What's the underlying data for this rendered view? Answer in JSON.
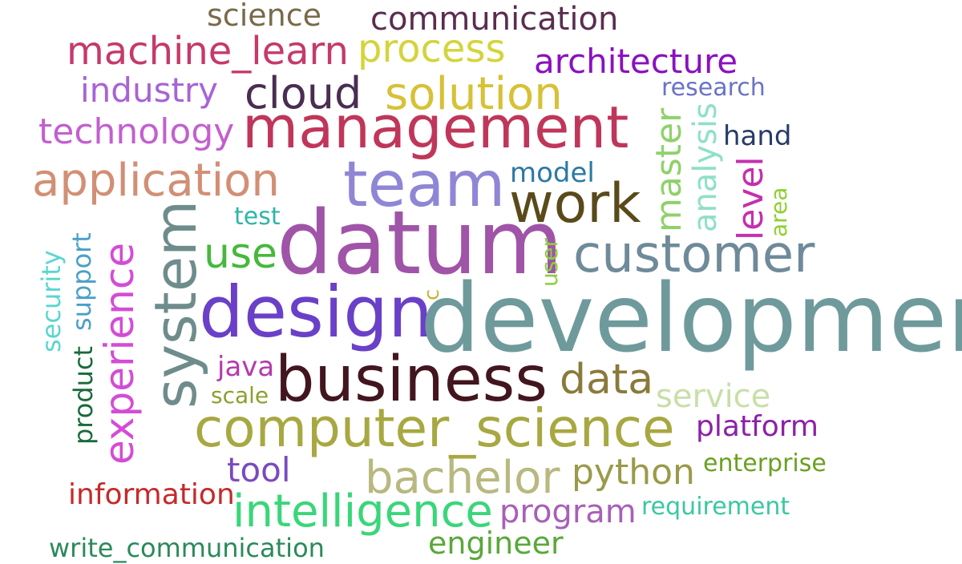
{
  "words": [
    {
      "key": "science",
      "text": "science",
      "color": "#7a6a4a"
    },
    {
      "key": "communication",
      "text": "communication",
      "color": "#5a2d4f"
    },
    {
      "key": "machine-learn",
      "text": "machine_learn",
      "color": "#c43a6b"
    },
    {
      "key": "process",
      "text": "process",
      "color": "#d4d43a"
    },
    {
      "key": "architecture",
      "text": "architecture",
      "color": "#8b10c0"
    },
    {
      "key": "industry",
      "text": "industry",
      "color": "#a863d6"
    },
    {
      "key": "cloud",
      "text": "cloud",
      "color": "#4a2d52"
    },
    {
      "key": "solution",
      "text": "solution",
      "color": "#d7c136"
    },
    {
      "key": "research",
      "text": "research",
      "color": "#6a72c8"
    },
    {
      "key": "technology",
      "text": "technology",
      "color": "#c35fd0"
    },
    {
      "key": "management",
      "text": "management",
      "color": "#c0365a"
    },
    {
      "key": "hand",
      "text": "hand",
      "color": "#283c68"
    },
    {
      "key": "master",
      "text": "master",
      "color": "#8fd16a"
    },
    {
      "key": "analysis",
      "text": "analysis",
      "color": "#8fe0c8"
    },
    {
      "key": "application",
      "text": "application",
      "color": "#d28f75"
    },
    {
      "key": "team",
      "text": "team",
      "color": "#8f86d6"
    },
    {
      "key": "model",
      "text": "model",
      "color": "#2a7aa3"
    },
    {
      "key": "work",
      "text": "work",
      "color": "#5a4a1a"
    },
    {
      "key": "level",
      "text": "level",
      "color": "#c52fae"
    },
    {
      "key": "area",
      "text": "area",
      "color": "#8ed02f"
    },
    {
      "key": "test",
      "text": "test",
      "color": "#2fb5a8"
    },
    {
      "key": "datum",
      "text": "datum",
      "color": "#a054a8"
    },
    {
      "key": "system",
      "text": "system",
      "color": "#6f8c8c"
    },
    {
      "key": "support",
      "text": "support",
      "color": "#4aa0c8"
    },
    {
      "key": "security",
      "text": "security",
      "color": "#5ad6d0"
    },
    {
      "key": "experience",
      "text": "experience",
      "color": "#d44cd6"
    },
    {
      "key": "use",
      "text": "use",
      "color": "#46b83c"
    },
    {
      "key": "user",
      "text": "user",
      "color": "#8ccf3c"
    },
    {
      "key": "customer",
      "text": "customer",
      "color": "#6f8a99"
    },
    {
      "key": "design",
      "text": "design",
      "color": "#6a40c8"
    },
    {
      "key": "c",
      "text": "c",
      "color": "#c6b43a"
    },
    {
      "key": "development",
      "text": "development",
      "color": "#6f9a9c"
    },
    {
      "key": "product",
      "text": "product",
      "color": "#1a6a3a"
    },
    {
      "key": "java",
      "text": "java",
      "color": "#b43aae"
    },
    {
      "key": "business",
      "text": "business",
      "color": "#43161f"
    },
    {
      "key": "data",
      "text": "data",
      "color": "#8a7a3a"
    },
    {
      "key": "scale",
      "text": "scale",
      "color": "#8aa02f"
    },
    {
      "key": "service",
      "text": "service",
      "color": "#c8dfa8"
    },
    {
      "key": "computer-science",
      "text": "computer_science",
      "color": "#a8a842"
    },
    {
      "key": "platform",
      "text": "platform",
      "color": "#8c20a8"
    },
    {
      "key": "tool",
      "text": "tool",
      "color": "#7a4ac0"
    },
    {
      "key": "enterprise",
      "text": "enterprise",
      "color": "#6aa020"
    },
    {
      "key": "python",
      "text": "python",
      "color": "#9a9a4a"
    },
    {
      "key": "bachelor",
      "text": "bachelor",
      "color": "#b8b880"
    },
    {
      "key": "information",
      "text": "information",
      "color": "#c42a2a"
    },
    {
      "key": "intelligence",
      "text": "intelligence",
      "color": "#3ad67a"
    },
    {
      "key": "program",
      "text": "program",
      "color": "#a860b8"
    },
    {
      "key": "requirement",
      "text": "requirement",
      "color": "#3ac8a0"
    },
    {
      "key": "write-communication",
      "text": "write_communication",
      "color": "#2a8a5a"
    },
    {
      "key": "engineer",
      "text": "engineer",
      "color": "#5aa83a"
    }
  ]
}
